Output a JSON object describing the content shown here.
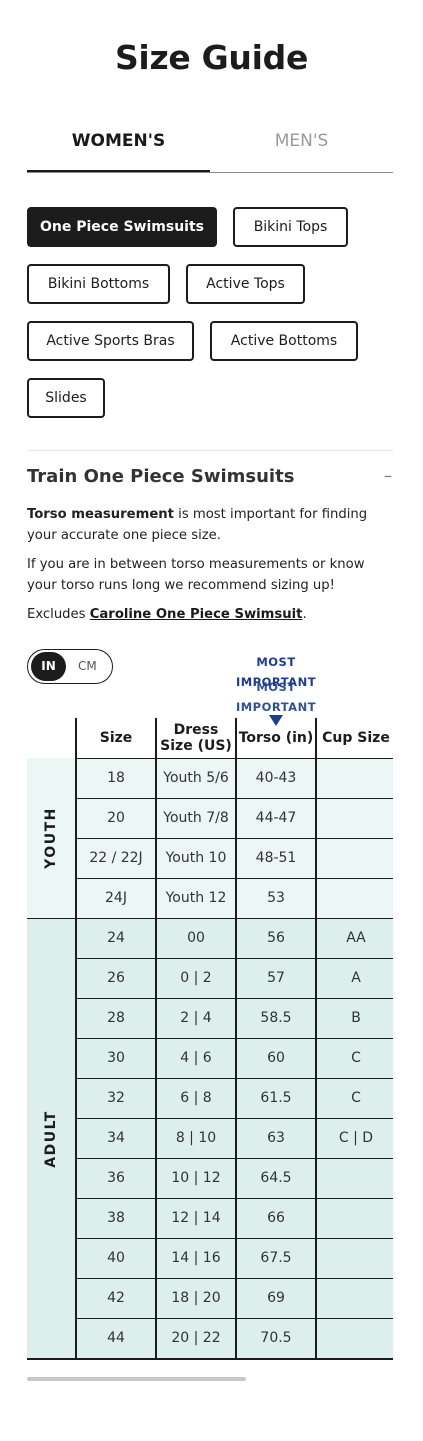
{
  "page_title": "Size Guide",
  "tabs": {
    "womens": "WOMEN'S",
    "mens": "MEN'S"
  },
  "categories": [
    "One Piece Swimsuits",
    "Bikini Tops",
    "Bikini Bottoms",
    "Active Tops",
    "Active Sports Bras",
    "Active Bottoms",
    "Slides"
  ],
  "section": {
    "title": "Train One Piece Swimsuits",
    "collapse_symbol": "–",
    "p1_bold": "Torso measurement",
    "p1_rest": " is most important for finding your accurate one piece size.",
    "p2": "If you are in between torso measurements or know your torso runs long we recommend sizing up!",
    "p3_prefix": "Excludes ",
    "p3_link": "Caroline One Piece Swimsuit",
    "p3_suffix": "."
  },
  "unit_toggle": {
    "on": "IN",
    "off": "CM"
  },
  "most_important": {
    "line1": "MOST",
    "line2": "IMPORTANT"
  },
  "table": {
    "headers": {
      "size": "Size",
      "dress": "Dress Size (US)",
      "torso": "Torso (in)",
      "cup": "Cup Size"
    },
    "groups": {
      "youth": "YOUTH",
      "adult": "ADULT"
    },
    "youth_rows": [
      [
        "18",
        "Youth 5/6",
        "40-43",
        ""
      ],
      [
        "20",
        "Youth 7/8",
        "44-47",
        ""
      ],
      [
        "22 / 22J",
        "Youth 10",
        "48-51",
        ""
      ],
      [
        "24J",
        "Youth 12",
        "53",
        ""
      ]
    ],
    "adult_rows": [
      [
        "24",
        "00",
        "56",
        "AA"
      ],
      [
        "26",
        "0 | 2",
        "57",
        "A"
      ],
      [
        "28",
        "2 | 4",
        "58.5",
        "B"
      ],
      [
        "30",
        "4 | 6",
        "60",
        "C"
      ],
      [
        "32",
        "6 | 8",
        "61.5",
        "C"
      ],
      [
        "34",
        "8 | 10",
        "63",
        "C | D"
      ],
      [
        "36",
        "10 | 12",
        "64.5",
        ""
      ],
      [
        "38",
        "12 | 14",
        "66",
        ""
      ],
      [
        "40",
        "14 | 16",
        "67.5",
        ""
      ],
      [
        "42",
        "18 | 20",
        "69",
        ""
      ],
      [
        "44",
        "20 | 22",
        "70.5",
        ""
      ]
    ]
  },
  "colors": {
    "dark": "#1c1c1c",
    "youth_bg": "#ecf7f5",
    "adult_bg": "#dcefec",
    "accent_blue": "#1e3d8a"
  }
}
